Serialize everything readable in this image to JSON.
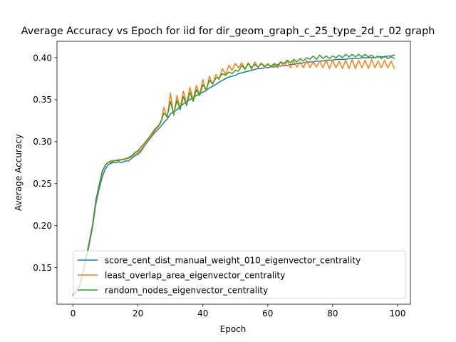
{
  "chart_data": {
    "type": "line",
    "title": "Average Accuracy vs Epoch for iid for dir_geom_graph_c_25_type_2d_r_02 graph",
    "xlabel": "Epoch",
    "ylabel": "Average Accuracy",
    "xlim": [
      -4.95,
      103.95
    ],
    "ylim": [
      0.1065,
      0.4195
    ],
    "xticks": [
      0,
      20,
      40,
      60,
      80,
      100
    ],
    "yticks": [
      0.15,
      0.2,
      0.25,
      0.3,
      0.35,
      0.4
    ],
    "xtick_labels": [
      "0",
      "20",
      "40",
      "60",
      "80",
      "100"
    ],
    "ytick_labels": [
      "0.15",
      "0.20",
      "0.25",
      "0.30",
      "0.35",
      "0.40"
    ],
    "grid": false,
    "legend_position": "lower-right",
    "x": [
      0,
      1,
      2,
      3,
      4,
      5,
      6,
      7,
      8,
      9,
      10,
      11,
      12,
      13,
      14,
      15,
      16,
      17,
      18,
      19,
      20,
      21,
      22,
      23,
      24,
      25,
      26,
      27,
      28,
      29,
      30,
      31,
      32,
      33,
      34,
      35,
      36,
      37,
      38,
      39,
      40,
      41,
      42,
      43,
      44,
      45,
      46,
      47,
      48,
      49,
      50,
      51,
      52,
      53,
      54,
      55,
      56,
      57,
      58,
      59,
      60,
      61,
      62,
      63,
      64,
      65,
      66,
      67,
      68,
      69,
      70,
      71,
      72,
      73,
      74,
      75,
      76,
      77,
      78,
      79,
      80,
      81,
      82,
      83,
      84,
      85,
      86,
      87,
      88,
      89,
      90,
      91,
      92,
      93,
      94,
      95,
      96,
      97,
      98,
      99
    ],
    "series": [
      {
        "name": "score_cent_dist_manual_weight_010_eigenvector_centrality",
        "color": "#1f77b4",
        "values": [
          0.118,
          0.121,
          0.128,
          0.142,
          0.16,
          0.178,
          0.198,
          0.225,
          0.243,
          0.258,
          0.268,
          0.273,
          0.275,
          0.275,
          0.276,
          0.275,
          0.277,
          0.277,
          0.28,
          0.283,
          0.285,
          0.289,
          0.295,
          0.3,
          0.305,
          0.31,
          0.314,
          0.318,
          0.323,
          0.327,
          0.333,
          0.336,
          0.338,
          0.342,
          0.345,
          0.348,
          0.35,
          0.353,
          0.355,
          0.357,
          0.359,
          0.361,
          0.364,
          0.366,
          0.368,
          0.371,
          0.373,
          0.375,
          0.377,
          0.378,
          0.379,
          0.381,
          0.382,
          0.383,
          0.384,
          0.385,
          0.386,
          0.387,
          0.387,
          0.388,
          0.388,
          0.389,
          0.389,
          0.39,
          0.39,
          0.391,
          0.391,
          0.392,
          0.392,
          0.393,
          0.393,
          0.394,
          0.394,
          0.395,
          0.395,
          0.396,
          0.396,
          0.396,
          0.397,
          0.397,
          0.397,
          0.398,
          0.398,
          0.398,
          0.398,
          0.399,
          0.399,
          0.399,
          0.399,
          0.4,
          0.4,
          0.4,
          0.4,
          0.4,
          0.401,
          0.401,
          0.401,
          0.402,
          0.402,
          0.403
        ]
      },
      {
        "name": "least_overlap_area_eigenvector_centrality",
        "color": "#ff7f0e",
        "values": [
          0.119,
          0.122,
          0.13,
          0.145,
          0.163,
          0.18,
          0.2,
          0.228,
          0.247,
          0.263,
          0.273,
          0.276,
          0.278,
          0.277,
          0.279,
          0.278,
          0.28,
          0.28,
          0.282,
          0.285,
          0.287,
          0.291,
          0.296,
          0.301,
          0.306,
          0.312,
          0.317,
          0.322,
          0.341,
          0.328,
          0.358,
          0.331,
          0.355,
          0.34,
          0.36,
          0.345,
          0.365,
          0.35,
          0.367,
          0.356,
          0.374,
          0.36,
          0.378,
          0.368,
          0.38,
          0.374,
          0.387,
          0.38,
          0.391,
          0.385,
          0.393,
          0.388,
          0.394,
          0.387,
          0.394,
          0.386,
          0.395,
          0.388,
          0.394,
          0.388,
          0.393,
          0.389,
          0.392,
          0.388,
          0.395,
          0.39,
          0.396,
          0.388,
          0.396,
          0.389,
          0.395,
          0.388,
          0.397,
          0.388,
          0.395,
          0.389,
          0.396,
          0.388,
          0.397,
          0.387,
          0.397,
          0.388,
          0.396,
          0.387,
          0.397,
          0.387,
          0.398,
          0.387,
          0.397,
          0.388,
          0.397,
          0.387,
          0.398,
          0.388,
          0.396,
          0.388,
          0.397,
          0.388,
          0.396,
          0.387
        ]
      },
      {
        "name": "random_nodes_eigenvector_centrality",
        "color": "#2ca02c",
        "values": [
          0.117,
          0.121,
          0.129,
          0.143,
          0.162,
          0.181,
          0.201,
          0.23,
          0.248,
          0.265,
          0.272,
          0.276,
          0.276,
          0.278,
          0.277,
          0.279,
          0.279,
          0.281,
          0.283,
          0.287,
          0.289,
          0.294,
          0.298,
          0.303,
          0.308,
          0.314,
          0.318,
          0.323,
          0.334,
          0.33,
          0.348,
          0.333,
          0.349,
          0.338,
          0.354,
          0.343,
          0.359,
          0.348,
          0.362,
          0.355,
          0.368,
          0.362,
          0.373,
          0.369,
          0.376,
          0.376,
          0.381,
          0.379,
          0.383,
          0.381,
          0.385,
          0.384,
          0.391,
          0.386,
          0.393,
          0.388,
          0.392,
          0.389,
          0.393,
          0.39,
          0.392,
          0.39,
          0.393,
          0.391,
          0.395,
          0.393,
          0.397,
          0.394,
          0.398,
          0.395,
          0.399,
          0.396,
          0.4,
          0.398,
          0.402,
          0.398,
          0.403,
          0.399,
          0.402,
          0.399,
          0.402,
          0.4,
          0.403,
          0.4,
          0.404,
          0.401,
          0.404,
          0.401,
          0.404,
          0.401,
          0.404,
          0.401,
          0.403,
          0.4,
          0.402,
          0.399,
          0.402,
          0.399,
          0.401,
          0.399
        ]
      }
    ]
  }
}
